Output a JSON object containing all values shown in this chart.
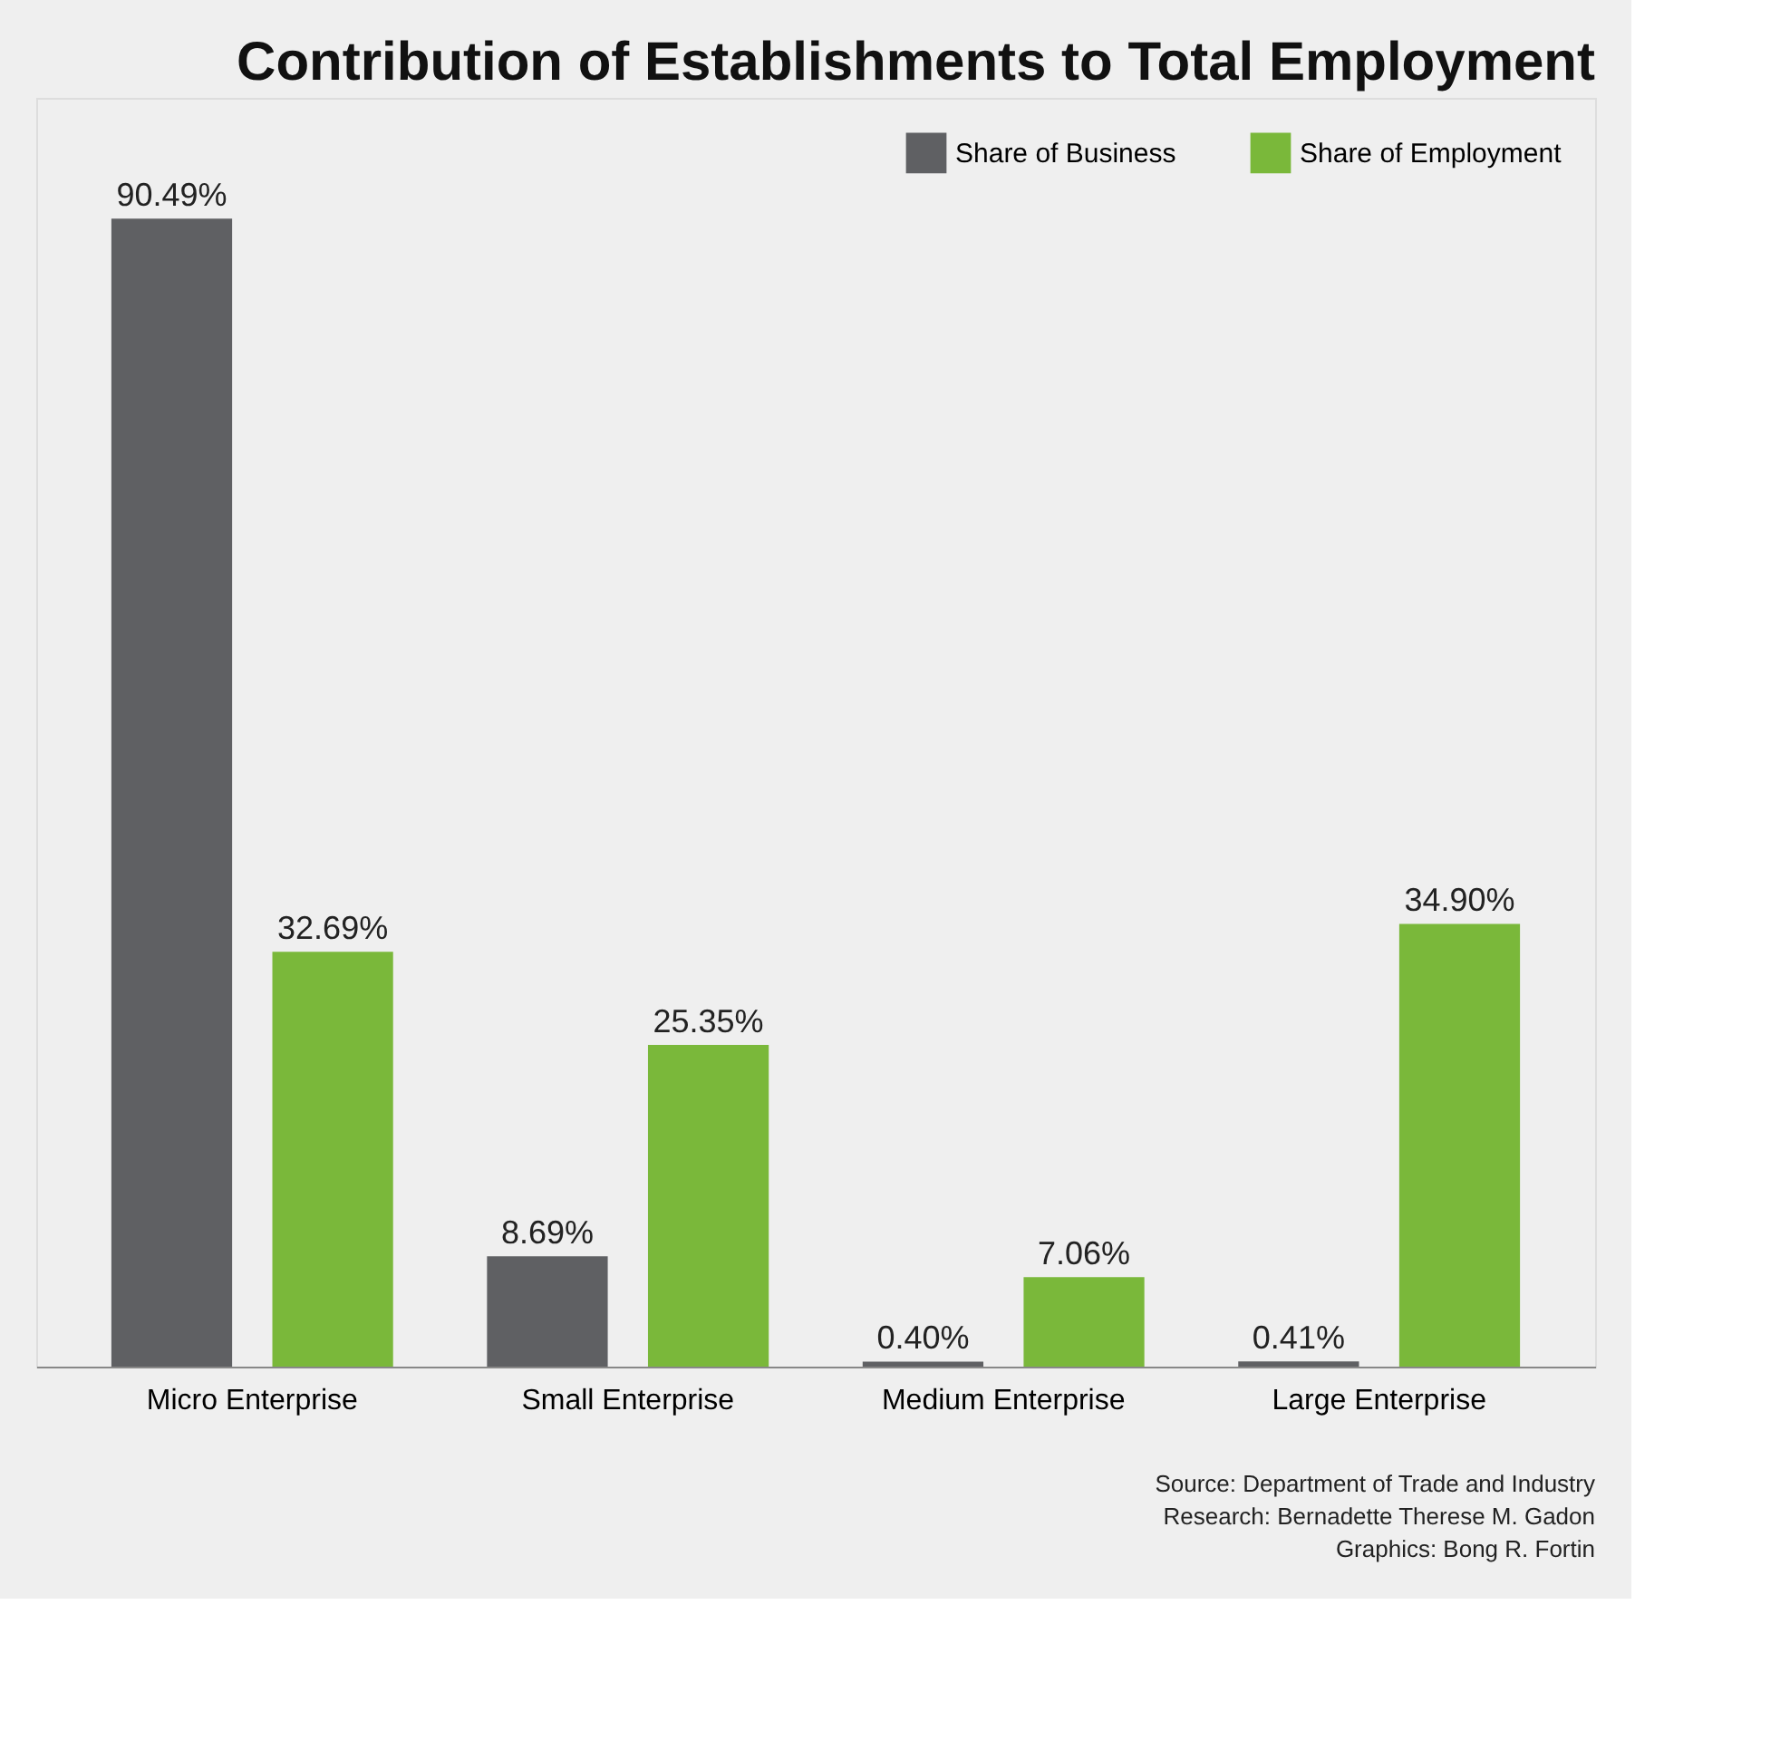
{
  "chart_data": {
    "type": "bar",
    "title": "Contribution of Establishments to Total Employment",
    "categories": [
      "Micro Enterprise",
      "Small Enterprise",
      "Medium Enterprise",
      "Large Enterprise"
    ],
    "series": [
      {
        "name": "Share of Business",
        "color": "#5f6063",
        "values": [
          90.49,
          8.69,
          0.4,
          0.41
        ],
        "value_labels": [
          "90.49%",
          "8.69%",
          "0.40%",
          "0.41%"
        ]
      },
      {
        "name": "Share of Employment",
        "color": "#7ab83a",
        "values": [
          32.69,
          25.35,
          7.06,
          34.9
        ],
        "value_labels": [
          "32.69%",
          "25.35%",
          "7.06%",
          "34.90%"
        ]
      }
    ],
    "legend": "top right",
    "tick_labels": "x",
    "grid": false,
    "annotations": [
      "Source: Department of Trade and Industry",
      "Research: Bernadette Therese M. Gadon",
      "Graphics: Bong R. Fortin"
    ]
  }
}
